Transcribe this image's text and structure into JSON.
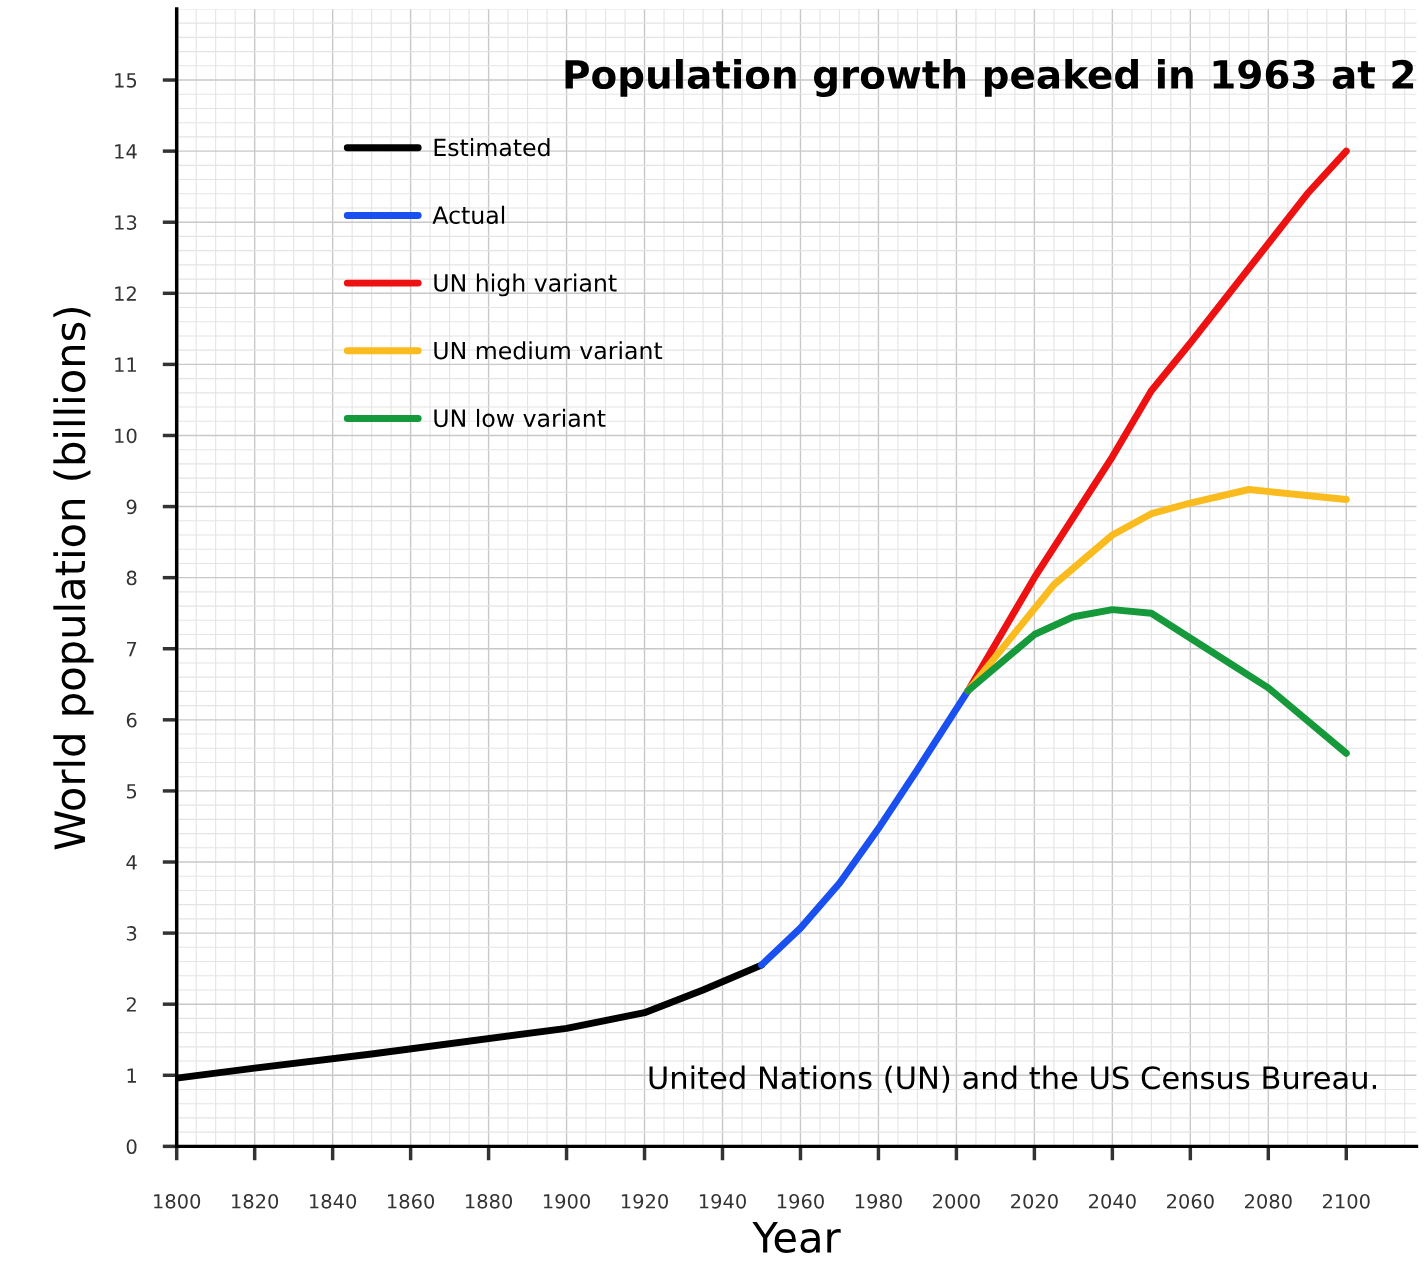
{
  "chart_data": {
    "type": "line",
    "title": "Population growth peaked in 1963 at 2",
    "xlabel": "Year",
    "ylabel": "World population (billions)",
    "xlim": [
      1800,
      2118
    ],
    "xticks": [
      1800,
      1820,
      1840,
      1860,
      1880,
      1900,
      1920,
      1940,
      1960,
      1980,
      2000,
      2020,
      2040,
      2060,
      2080,
      2100
    ],
    "ylim": [
      0,
      16
    ],
    "yticks": [
      0,
      1,
      2,
      3,
      4,
      5,
      6,
      7,
      8,
      9,
      10,
      11,
      12,
      13,
      14,
      15
    ],
    "grid": true,
    "legend": "top left",
    "line_style": "solid",
    "marker": "none",
    "annotations": [
      "United Nations (UN) and the US Census Bureau."
    ],
    "series": [
      {
        "name": "Estimated",
        "color": "#000000",
        "x": [
          1800,
          1820,
          1850,
          1900,
          1920,
          1935,
          1950
        ],
        "values": [
          0.96,
          1.1,
          1.3,
          1.66,
          1.88,
          2.2,
          2.55
        ]
      },
      {
        "name": "Actual",
        "color": "#1a4ff0",
        "x": [
          1950,
          1960,
          1970,
          1980,
          1990,
          2003
        ],
        "values": [
          2.55,
          3.07,
          3.7,
          4.47,
          5.3,
          6.41
        ]
      },
      {
        "name": "UN high variant",
        "color": "#ee1111",
        "x": [
          2003,
          2020,
          2040,
          2050,
          2060,
          2080,
          2090,
          2100
        ],
        "values": [
          6.41,
          8.0,
          9.7,
          10.63,
          11.3,
          12.7,
          13.4,
          14.0
        ]
      },
      {
        "name": "UN medium variant",
        "color": "#f9bb1e",
        "x": [
          2003,
          2025,
          2040,
          2050,
          2060,
          2075,
          2100
        ],
        "values": [
          6.41,
          7.9,
          8.6,
          8.9,
          9.05,
          9.24,
          9.1
        ]
      },
      {
        "name": "UN low variant",
        "color": "#16993a",
        "x": [
          2003,
          2020,
          2030,
          2040,
          2050,
          2070,
          2080,
          2100
        ],
        "values": [
          6.41,
          7.2,
          7.45,
          7.55,
          7.5,
          6.8,
          6.45,
          5.53
        ]
      }
    ]
  }
}
